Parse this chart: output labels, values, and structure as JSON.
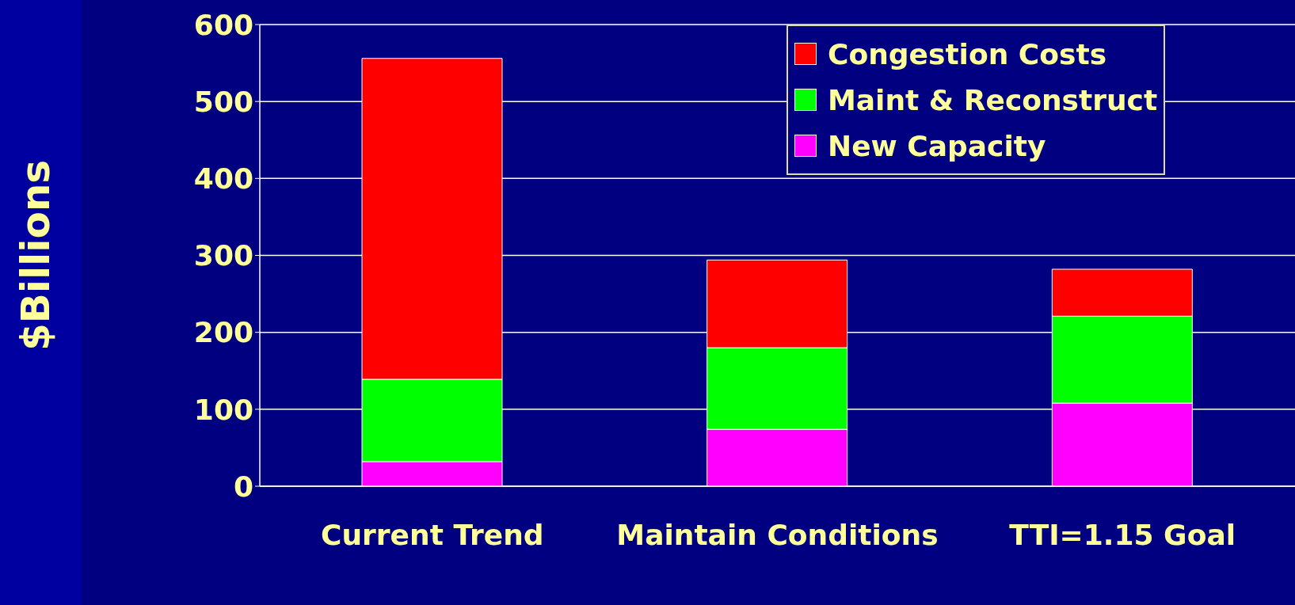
{
  "chart_data": {
    "type": "bar",
    "stacked": true,
    "ylabel": "$Billions",
    "categories": [
      "Current Trend",
      "Maintain Conditions",
      "TTI=1.15 Goal"
    ],
    "series": [
      {
        "name": "New Capacity",
        "color": "#ff00ff",
        "values": [
          32,
          74,
          108
        ]
      },
      {
        "name": "Maint & Reconstruct",
        "color": "#00ff00",
        "values": [
          107,
          106,
          113
        ]
      },
      {
        "name": "Congestion Costs",
        "color": "#ff0000",
        "values": [
          417,
          114,
          61
        ]
      }
    ],
    "ylim": [
      0,
      600
    ],
    "yticks": [
      0,
      100,
      200,
      300,
      400,
      500,
      600
    ],
    "grid": "y",
    "legend": "top right"
  }
}
